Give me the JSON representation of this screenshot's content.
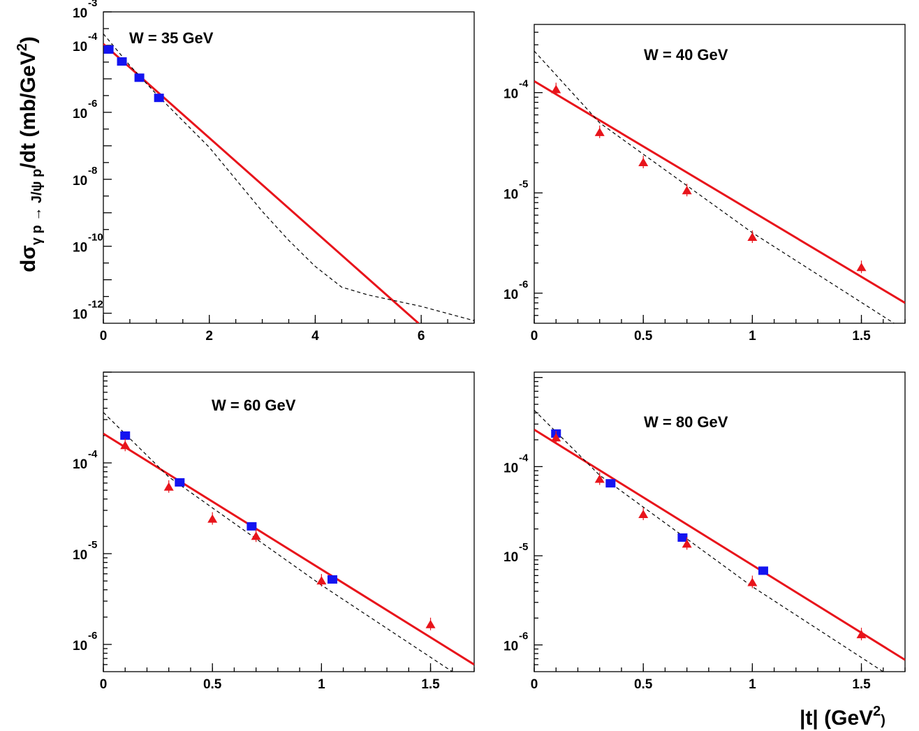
{
  "figure": {
    "ylabel_main": "dσ",
    "ylabel_sub": "γ p → J/ψ p",
    "ylabel_tail": "/dt (mb/GeV",
    "ylabel_sup": "2",
    "ylabel_close": ")",
    "xlabel_main": "|t| (GeV",
    "xlabel_sup": "2",
    "xlabel_close": ")"
  },
  "colors": {
    "solid_fit": "#e8141b",
    "dashed_fit": "#000000",
    "squares": "#1414f0",
    "triangles": "#e8141b"
  },
  "chart_data": [
    {
      "type": "scatter",
      "title": "W = 35 GeV",
      "xlim": [
        0,
        7
      ],
      "ylim_log10": [
        -12.3,
        -3.0
      ],
      "log_y": true,
      "x_ticks": [
        0,
        2,
        4,
        6
      ],
      "x_tick_labels": [
        "0",
        "2",
        "4",
        "6"
      ],
      "y_tick_exponents": [
        -3,
        -4,
        -6,
        -8,
        -10,
        -12
      ],
      "y_tick_base": "10",
      "series": [
        {
          "marker": "square",
          "points": [
            [
              0.1,
              7.5e-05
            ],
            [
              0.35,
              3.3e-05
            ],
            [
              0.68,
              1.08e-05
            ],
            [
              1.05,
              2.7e-06
            ]
          ]
        },
        {
          "style": "solid",
          "points": [
            [
              0,
              0.00011
            ],
            [
              5.95,
              5e-13
            ]
          ]
        },
        {
          "style": "dashed",
          "points": [
            [
              0,
              0.00022
            ],
            [
              0.5,
              2.5e-05
            ],
            [
              1.0,
              3.5e-06
            ],
            [
              2.0,
              9e-08
            ],
            [
              3.0,
              1.1e-09
            ],
            [
              3.5,
              1.5e-10
            ],
            [
              4.0,
              2.5e-11
            ],
            [
              4.5,
              6e-12
            ],
            [
              5.0,
              3.5e-12
            ],
            [
              6.0,
              1.6e-12
            ],
            [
              7.0,
              6e-13
            ]
          ]
        }
      ]
    },
    {
      "type": "scatter",
      "title": "W = 40 GeV",
      "xlim": [
        0,
        1.7
      ],
      "ylim_log10": [
        -6.3,
        -3.32
      ],
      "log_y": true,
      "x_ticks": [
        0,
        0.5,
        1,
        1.5
      ],
      "x_tick_labels": [
        "0",
        "0.5",
        "1",
        "1.5"
      ],
      "y_tick_exponents": [
        -4,
        -5,
        -6
      ],
      "y_tick_base": "10",
      "series": [
        {
          "marker": "triangle",
          "points": [
            [
              0.1,
              0.000107
            ],
            [
              0.3,
              4e-05
            ],
            [
              0.5,
              2e-05
            ],
            [
              0.7,
              1.05e-05
            ],
            [
              1.0,
              3.6e-06
            ],
            [
              1.5,
              1.8e-06
            ]
          ]
        },
        {
          "style": "solid",
          "points": [
            [
              0,
              0.00013
            ],
            [
              1.7,
              8e-07
            ]
          ]
        },
        {
          "style": "dashed",
          "points": [
            [
              0,
              0.00026
            ],
            [
              0.3,
              5e-05
            ],
            [
              1.0,
              4e-06
            ],
            [
              1.65,
              5e-07
            ]
          ]
        }
      ]
    },
    {
      "type": "scatter",
      "title": "W = 60 GeV",
      "xlim": [
        0,
        1.7
      ],
      "ylim_log10": [
        -6.3,
        -3.0
      ],
      "log_y": true,
      "x_ticks": [
        0,
        0.5,
        1,
        1.5
      ],
      "x_tick_labels": [
        "0",
        "0.5",
        "1",
        "1.5"
      ],
      "y_tick_exponents": [
        -4,
        -5,
        -6
      ],
      "y_tick_base": "10",
      "series": [
        {
          "marker": "square",
          "points": [
            [
              0.1,
              0.0002
            ],
            [
              0.35,
              6.1e-05
            ],
            [
              0.68,
              2e-05
            ],
            [
              1.05,
              5.2e-06
            ]
          ]
        },
        {
          "marker": "triangle",
          "points": [
            [
              0.1,
              0.000155
            ],
            [
              0.3,
              5.4e-05
            ],
            [
              0.5,
              2.4e-05
            ],
            [
              0.7,
              1.55e-05
            ],
            [
              1.0,
              5e-06
            ],
            [
              1.5,
              1.65e-06
            ]
          ]
        },
        {
          "style": "solid",
          "points": [
            [
              0,
              0.00021
            ],
            [
              1.7,
              6e-07
            ]
          ]
        },
        {
          "style": "dashed",
          "points": [
            [
              0,
              0.00036
            ],
            [
              0.3,
              7e-05
            ],
            [
              1.0,
              4.5e-06
            ],
            [
              1.6,
              5e-07
            ]
          ]
        }
      ]
    },
    {
      "type": "scatter",
      "title": "W = 80 GeV",
      "xlim": [
        0,
        1.7
      ],
      "ylim_log10": [
        -6.3,
        -2.94
      ],
      "log_y": true,
      "x_ticks": [
        0,
        0.5,
        1,
        1.5
      ],
      "x_tick_labels": [
        "0",
        "0.5",
        "1",
        "1.5"
      ],
      "y_tick_exponents": [
        -4,
        -5,
        -6
      ],
      "y_tick_base": "10",
      "series": [
        {
          "marker": "square",
          "points": [
            [
              0.1,
              0.000235
            ],
            [
              0.35,
              6.5e-05
            ],
            [
              0.68,
              1.6e-05
            ],
            [
              1.05,
              6.8e-06
            ]
          ]
        },
        {
          "marker": "triangle",
          "points": [
            [
              0.1,
              0.00021
            ],
            [
              0.3,
              7.2e-05
            ],
            [
              0.5,
              2.9e-05
            ],
            [
              0.7,
              1.35e-05
            ],
            [
              1.0,
              5e-06
            ],
            [
              1.5,
              1.3e-06
            ]
          ]
        },
        {
          "style": "solid",
          "points": [
            [
              0,
              0.00026
            ],
            [
              1.7,
              6.8e-07
            ]
          ]
        },
        {
          "style": "dashed",
          "points": [
            [
              0,
              0.00043
            ],
            [
              0.3,
              8e-05
            ],
            [
              1.0,
              4.5e-06
            ],
            [
              1.6,
              5e-07
            ]
          ]
        }
      ]
    }
  ]
}
